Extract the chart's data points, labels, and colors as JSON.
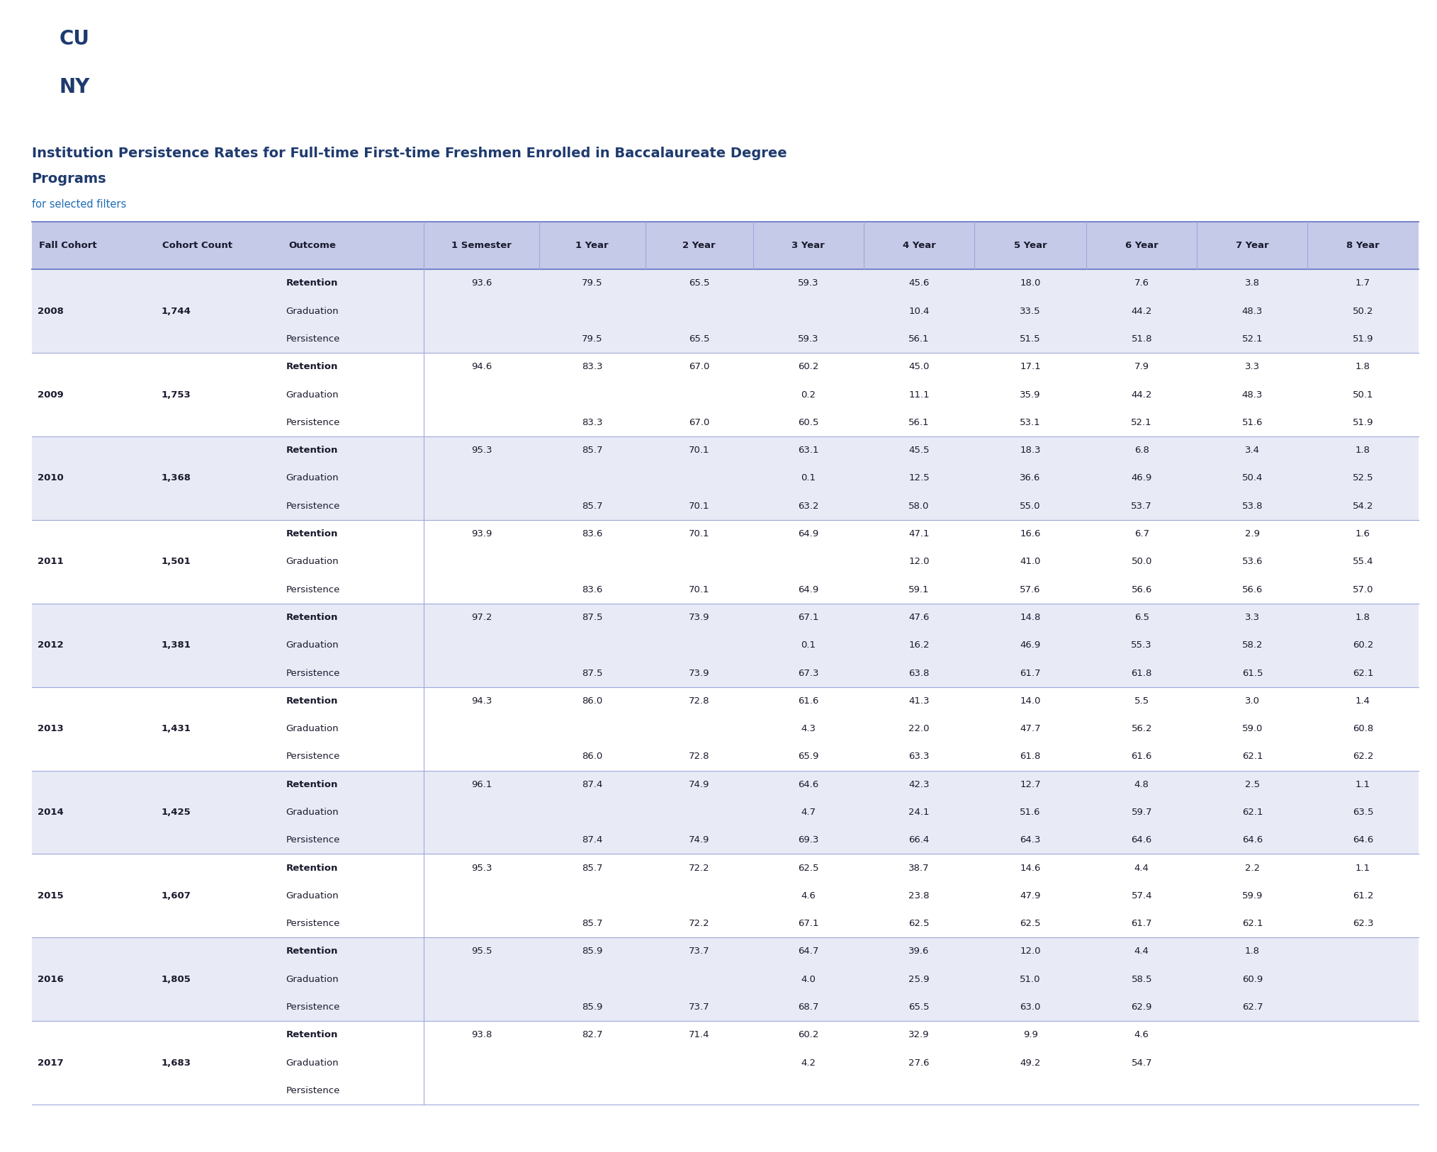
{
  "header_bg": "#1e3a6e",
  "header_text_color": "#ffffff",
  "title_color": "#1e3a6e",
  "subtitle_color": "#1e6eb5",
  "col_headers": [
    "Fall Cohort",
    "Cohort Count",
    "Outcome",
    "1 Semester",
    "1 Year",
    "2 Year",
    "3 Year",
    "4 Year",
    "5 Year",
    "6 Year",
    "7 Year",
    "8 Year"
  ],
  "col_header_bg": "#c5cae8",
  "col_header_text_color": "#1a1a2e",
  "row_bg_odd": "#e8eaf6",
  "row_bg_even": "#ffffff",
  "data": [
    {
      "cohort": "2008",
      "count": "1,744",
      "rows": [
        {
          "outcome": "Retention",
          "vals": [
            "93.6",
            "79.5",
            "65.5",
            "59.3",
            "45.6",
            "18.0",
            "7.6",
            "3.8",
            "1.7"
          ]
        },
        {
          "outcome": "Graduation",
          "vals": [
            "",
            "",
            "",
            "10.4",
            "33.5",
            "44.2",
            "48.3",
            "50.2"
          ]
        },
        {
          "outcome": "Persistence",
          "vals": [
            "",
            "79.5",
            "65.5",
            "59.3",
            "56.1",
            "51.5",
            "51.8",
            "52.1",
            "51.9"
          ]
        }
      ]
    },
    {
      "cohort": "2009",
      "count": "1,753",
      "rows": [
        {
          "outcome": "Retention",
          "vals": [
            "94.6",
            "83.3",
            "67.0",
            "60.2",
            "45.0",
            "17.1",
            "7.9",
            "3.3",
            "1.8"
          ]
        },
        {
          "outcome": "Graduation",
          "vals": [
            "",
            "",
            "0.2",
            "11.1",
            "35.9",
            "44.2",
            "48.3",
            "50.1"
          ]
        },
        {
          "outcome": "Persistence",
          "vals": [
            "",
            "83.3",
            "67.0",
            "60.5",
            "56.1",
            "53.1",
            "52.1",
            "51.6",
            "51.9"
          ]
        }
      ]
    },
    {
      "cohort": "2010",
      "count": "1,368",
      "rows": [
        {
          "outcome": "Retention",
          "vals": [
            "95.3",
            "85.7",
            "70.1",
            "63.1",
            "45.5",
            "18.3",
            "6.8",
            "3.4",
            "1.8"
          ]
        },
        {
          "outcome": "Graduation",
          "vals": [
            "",
            "",
            "0.1",
            "12.5",
            "36.6",
            "46.9",
            "50.4",
            "52.5"
          ]
        },
        {
          "outcome": "Persistence",
          "vals": [
            "",
            "85.7",
            "70.1",
            "63.2",
            "58.0",
            "55.0",
            "53.7",
            "53.8",
            "54.2"
          ]
        }
      ]
    },
    {
      "cohort": "2011",
      "count": "1,501",
      "rows": [
        {
          "outcome": "Retention",
          "vals": [
            "93.9",
            "83.6",
            "70.1",
            "64.9",
            "47.1",
            "16.6",
            "6.7",
            "2.9",
            "1.6"
          ]
        },
        {
          "outcome": "Graduation",
          "vals": [
            "",
            "",
            "",
            "12.0",
            "41.0",
            "50.0",
            "53.6",
            "55.4"
          ]
        },
        {
          "outcome": "Persistence",
          "vals": [
            "",
            "83.6",
            "70.1",
            "64.9",
            "59.1",
            "57.6",
            "56.6",
            "56.6",
            "57.0"
          ]
        }
      ]
    },
    {
      "cohort": "2012",
      "count": "1,381",
      "rows": [
        {
          "outcome": "Retention",
          "vals": [
            "97.2",
            "87.5",
            "73.9",
            "67.1",
            "47.6",
            "14.8",
            "6.5",
            "3.3",
            "1.8"
          ]
        },
        {
          "outcome": "Graduation",
          "vals": [
            "",
            "",
            "0.1",
            "16.2",
            "46.9",
            "55.3",
            "58.2",
            "60.2"
          ]
        },
        {
          "outcome": "Persistence",
          "vals": [
            "",
            "87.5",
            "73.9",
            "67.3",
            "63.8",
            "61.7",
            "61.8",
            "61.5",
            "62.1"
          ]
        }
      ]
    },
    {
      "cohort": "2013",
      "count": "1,431",
      "rows": [
        {
          "outcome": "Retention",
          "vals": [
            "94.3",
            "86.0",
            "72.8",
            "61.6",
            "41.3",
            "14.0",
            "5.5",
            "3.0",
            "1.4"
          ]
        },
        {
          "outcome": "Graduation",
          "vals": [
            "",
            "",
            "4.3",
            "22.0",
            "47.7",
            "56.2",
            "59.0",
            "60.8"
          ]
        },
        {
          "outcome": "Persistence",
          "vals": [
            "",
            "86.0",
            "72.8",
            "65.9",
            "63.3",
            "61.8",
            "61.6",
            "62.1",
            "62.2"
          ]
        }
      ]
    },
    {
      "cohort": "2014",
      "count": "1,425",
      "rows": [
        {
          "outcome": "Retention",
          "vals": [
            "96.1",
            "87.4",
            "74.9",
            "64.6",
            "42.3",
            "12.7",
            "4.8",
            "2.5",
            "1.1"
          ]
        },
        {
          "outcome": "Graduation",
          "vals": [
            "",
            "",
            "4.7",
            "24.1",
            "51.6",
            "59.7",
            "62.1",
            "63.5"
          ]
        },
        {
          "outcome": "Persistence",
          "vals": [
            "",
            "87.4",
            "74.9",
            "69.3",
            "66.4",
            "64.3",
            "64.6",
            "64.6",
            "64.6"
          ]
        }
      ]
    },
    {
      "cohort": "2015",
      "count": "1,607",
      "rows": [
        {
          "outcome": "Retention",
          "vals": [
            "95.3",
            "85.7",
            "72.2",
            "62.5",
            "38.7",
            "14.6",
            "4.4",
            "2.2",
            "1.1"
          ]
        },
        {
          "outcome": "Graduation",
          "vals": [
            "",
            "",
            "4.6",
            "23.8",
            "47.9",
            "57.4",
            "59.9",
            "61.2"
          ]
        },
        {
          "outcome": "Persistence",
          "vals": [
            "",
            "85.7",
            "72.2",
            "67.1",
            "62.5",
            "62.5",
            "61.7",
            "62.1",
            "62.3"
          ]
        }
      ]
    },
    {
      "cohort": "2016",
      "count": "1,805",
      "rows": [
        {
          "outcome": "Retention",
          "vals": [
            "95.5",
            "85.9",
            "73.7",
            "64.7",
            "39.6",
            "12.0",
            "4.4",
            "1.8",
            ""
          ]
        },
        {
          "outcome": "Graduation",
          "vals": [
            "",
            "",
            "4.0",
            "25.9",
            "51.0",
            "58.5",
            "60.9",
            ""
          ]
        },
        {
          "outcome": "Persistence",
          "vals": [
            "",
            "85.9",
            "73.7",
            "68.7",
            "65.5",
            "63.0",
            "62.9",
            "62.7",
            ""
          ]
        }
      ]
    },
    {
      "cohort": "2017",
      "count": "1,683",
      "rows": [
        {
          "outcome": "Retention",
          "vals": [
            "93.8",
            "82.7",
            "71.4",
            "60.2",
            "32.9",
            "9.9",
            "4.6",
            "",
            ""
          ]
        },
        {
          "outcome": "Graduation",
          "vals": [
            "",
            "",
            "4.2",
            "27.6",
            "49.2",
            "54.7",
            "",
            ""
          ]
        },
        {
          "outcome": "Persistence",
          "vals": [
            "",
            "",
            "",
            "",
            "",
            "",
            "",
            "",
            ""
          ]
        }
      ]
    }
  ],
  "bg_color": "#ffffff"
}
